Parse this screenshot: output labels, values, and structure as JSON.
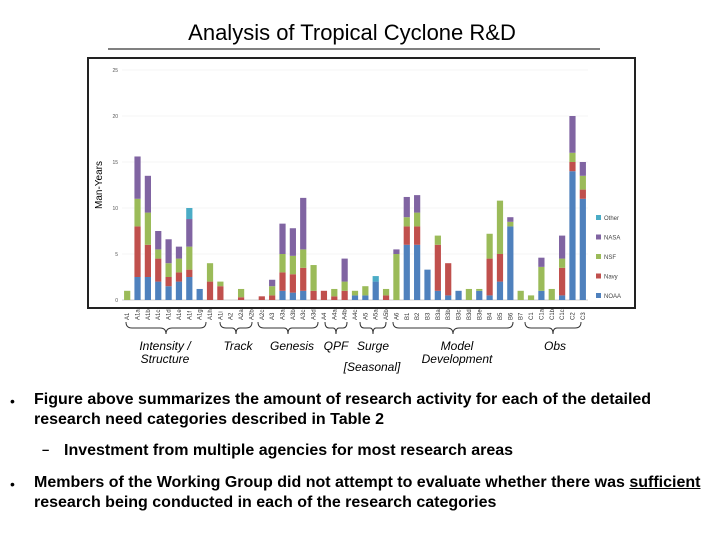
{
  "header": {
    "title": "Analysis of Tropical Cyclone R&D"
  },
  "chart_data": {
    "type": "stacked_bar",
    "y_label": "Man-Years",
    "categories": [
      "A1",
      "A1a",
      "A1b",
      "A1c",
      "A1d",
      "A1e",
      "A1f",
      "A1g",
      "A1h",
      "A1i",
      "A2",
      "A2a",
      "A2b",
      "A2c",
      "A3",
      "A3a",
      "A3b",
      "A3c",
      "A3d",
      "A4",
      "A4a",
      "A4b",
      "A4c",
      "A5",
      "A5a",
      "A5b",
      "A6",
      "B1",
      "B2",
      "B3",
      "B3a",
      "B3b",
      "B3c",
      "B3d",
      "B3e",
      "B4",
      "B5",
      "B6",
      "B7",
      "C1",
      "C1a",
      "C1b",
      "C1c",
      "C2",
      "C3"
    ],
    "series": [
      {
        "name": "NOAA",
        "color": "#4f81bd",
        "values": [
          0,
          2.5,
          2.5,
          2,
          1.5,
          2,
          2.5,
          1.2,
          0,
          0,
          0,
          0,
          0,
          0,
          0,
          1,
          0.8,
          1,
          0,
          0,
          0,
          0,
          0.5,
          0.5,
          2,
          0,
          0,
          6,
          6,
          3.3,
          1,
          0.5,
          1,
          0,
          1,
          0.5,
          2,
          8,
          0,
          0,
          1,
          0,
          0.5,
          14,
          11
        ]
      },
      {
        "name": "Navy",
        "color": "#c0504d",
        "values": [
          0,
          5.5,
          3.5,
          2.5,
          1,
          1,
          0.8,
          0,
          2,
          1.5,
          0,
          0.3,
          0,
          0.4,
          0.5,
          2,
          2,
          2.5,
          1,
          1,
          0.4,
          1,
          0,
          0,
          0,
          0.5,
          0,
          2,
          2,
          0,
          5,
          3.5,
          0,
          0,
          0,
          4,
          3,
          0,
          0,
          0,
          0,
          0,
          3,
          1,
          1
        ]
      },
      {
        "name": "NSF",
        "color": "#9bbb59",
        "values": [
          1,
          3,
          3.5,
          1,
          1.5,
          1.5,
          2.5,
          0,
          2,
          0.5,
          0,
          0.9,
          0,
          0,
          1,
          2,
          2,
          2,
          2.8,
          0,
          0.8,
          1,
          0.5,
          1,
          0,
          0.7,
          5,
          1,
          1.5,
          0,
          1,
          0,
          0,
          1.2,
          0.2,
          2.7,
          5.8,
          0.5,
          1,
          0.5,
          2.6,
          1.2,
          1,
          1,
          1.5
        ]
      },
      {
        "name": "NASA",
        "color": "#8064a2",
        "values": [
          0,
          4.6,
          4,
          2,
          2.6,
          1.3,
          3,
          0,
          0,
          0,
          0,
          0,
          0,
          0,
          0.7,
          3.3,
          3,
          5.6,
          0,
          0,
          0,
          2.5,
          0,
          0,
          0,
          0,
          0.5,
          2.2,
          1.9,
          0,
          0,
          0,
          0,
          0,
          0,
          0,
          0,
          0.5,
          0,
          0,
          1,
          0,
          2.5,
          4,
          1.5
        ]
      },
      {
        "name": "Other",
        "color": "#4bacc6",
        "values": [
          0,
          0,
          0,
          0,
          0,
          0,
          1.2,
          0,
          0,
          0,
          0,
          0,
          0,
          0,
          0,
          0,
          0,
          0,
          0,
          0,
          0,
          0,
          0,
          0,
          0.6,
          0,
          0,
          0,
          0,
          0,
          0,
          0,
          0,
          0,
          0,
          0,
          0,
          0,
          0,
          0,
          0,
          0,
          0,
          0,
          0
        ]
      }
    ],
    "ylim": [
      0,
      25
    ],
    "yticks": [
      0,
      5,
      10,
      15,
      20,
      25
    ],
    "groups": [
      "Intensity / Structure",
      "Track",
      "Genesis",
      "QPF",
      "Surge",
      "Model Development",
      "[Seasonal]",
      "Obs"
    ]
  },
  "bullets": {
    "b1": "Figure above summarizes the amount of research activity for each of the detailed research need categories described in Table 2",
    "sub1": "Investment from multiple agencies for most research areas",
    "b2_start": "Members of the Working Group did not attempt to evaluate whether there was",
    "b2_underlined": "sufficient",
    "b2_end": "research being conducted in each of the research categories"
  }
}
